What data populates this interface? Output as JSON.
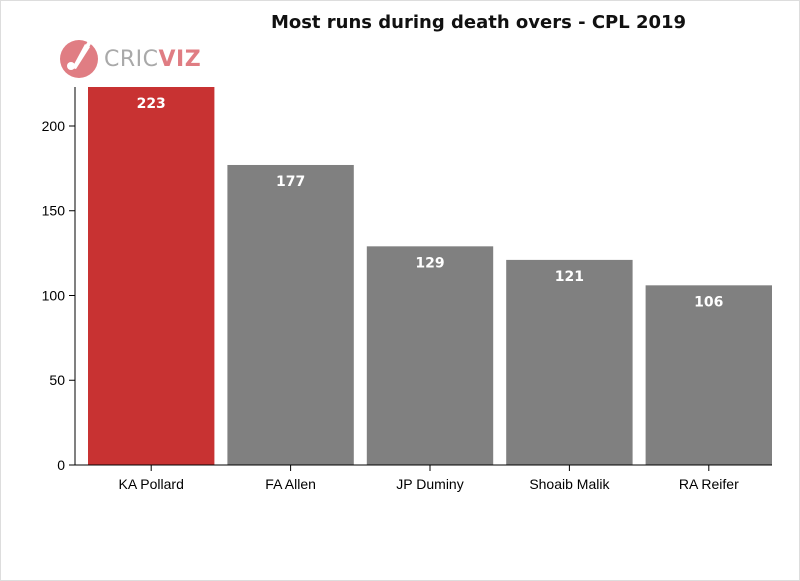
{
  "chart_data": {
    "type": "bar",
    "title": "Most runs during death overs - CPL 2019",
    "categories": [
      "KA Pollard",
      "FA Allen",
      "JP Duminy",
      "Shoaib Malik",
      "RA Reifer"
    ],
    "values": [
      223,
      177,
      129,
      121,
      106
    ],
    "data_labels": [
      "223",
      "177",
      "129",
      "121",
      "106"
    ],
    "xlabel": "",
    "ylabel": "",
    "ylim": [
      0,
      223
    ],
    "yticks": [
      0,
      50,
      100,
      150,
      200
    ],
    "ytick_labels": [
      "0",
      "50",
      "100",
      "150",
      "200"
    ],
    "grid": false,
    "colors": [
      "#c83232",
      "#808080",
      "#808080",
      "#808080",
      "#808080"
    ]
  },
  "logo": {
    "text_part1": "CRIC",
    "text_part2": "VIZ",
    "icon": "cricket-bat-ball-icon"
  }
}
